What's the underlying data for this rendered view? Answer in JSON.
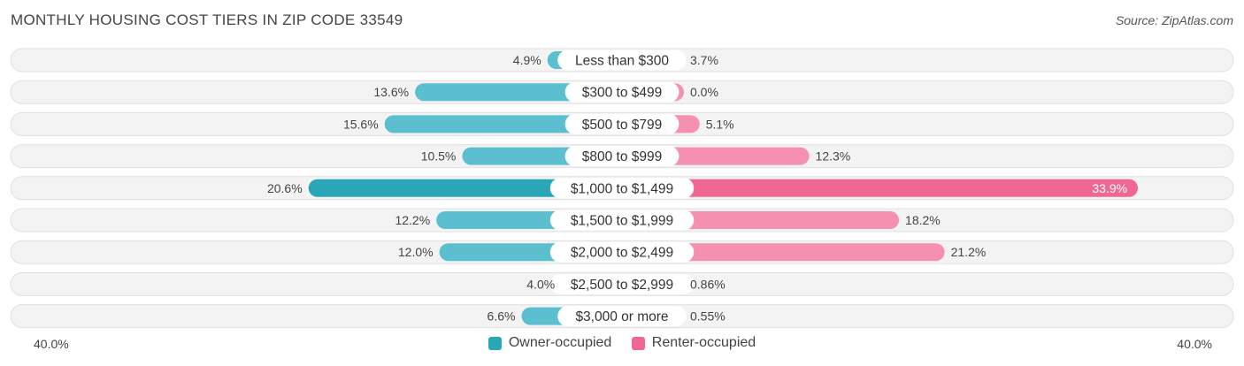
{
  "title": "MONTHLY HOUSING COST TIERS IN ZIP CODE 33549",
  "source": "Source: ZipAtlas.com",
  "chart_data": {
    "type": "bar",
    "orientation": "diverging-horizontal",
    "categories": [
      "Less than $300",
      "$300 to $499",
      "$500 to $799",
      "$800 to $999",
      "$1,000 to $1,499",
      "$1,500 to $1,999",
      "$2,000 to $2,499",
      "$2,500 to $2,999",
      "$3,000 or more"
    ],
    "series": [
      {
        "name": "Owner-occupied",
        "color": "#5bbfcf",
        "highlight_color": "#2aa6b9",
        "values": [
          4.9,
          13.6,
          15.6,
          10.5,
          20.6,
          12.2,
          12.0,
          4.0,
          6.6
        ],
        "labels": [
          "4.9%",
          "13.6%",
          "15.6%",
          "10.5%",
          "20.6%",
          "12.2%",
          "12.0%",
          "4.0%",
          "6.6%"
        ]
      },
      {
        "name": "Renter-occupied",
        "color": "#f590b0",
        "highlight_color": "#f06892",
        "values": [
          3.7,
          0.0,
          5.1,
          12.3,
          33.9,
          18.2,
          21.2,
          0.86,
          0.55
        ],
        "labels": [
          "3.7%",
          "0.0%",
          "5.1%",
          "12.3%",
          "33.9%",
          "18.2%",
          "21.2%",
          "0.86%",
          "0.55%"
        ]
      }
    ],
    "xlim": [
      -40,
      40
    ],
    "axis_left_label": "40.0%",
    "axis_right_label": "40.0%",
    "highlight_index": 4,
    "legend_position": "bottom-center"
  }
}
